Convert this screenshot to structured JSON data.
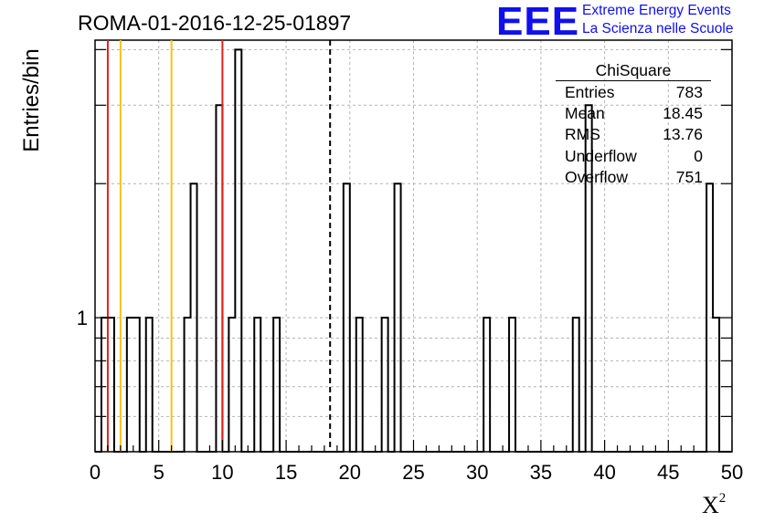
{
  "header": {
    "run_id": "ROMA-01-2016-12-25-01897",
    "logo_mark": "EEE",
    "logo_line1": "Extreme Energy Events",
    "logo_line2": "La Scienza nelle Scuole"
  },
  "stats": {
    "title": "ChiSquare",
    "rows": [
      {
        "label": "Entries",
        "value": "783"
      },
      {
        "label": "Mean",
        "value": "18.45"
      },
      {
        "label": "RMS",
        "value": "13.76"
      },
      {
        "label": "Underflow",
        "value": "0"
      },
      {
        "label": "Overflow",
        "value": "751"
      }
    ]
  },
  "colors": {
    "red_line": "#e0231c",
    "yellow_line": "#f5c21a",
    "grid": "#b4b4b4",
    "logo": "#1010ee"
  },
  "chart_data": {
    "type": "bar",
    "histogram": true,
    "xlabel": "Χ²",
    "ylabel": "Entries/bin",
    "xlim": [
      0,
      50
    ],
    "ylim": [
      0.5,
      4.2
    ],
    "y_scale": "log",
    "x_ticks": [
      "0",
      "5",
      "10",
      "15",
      "20",
      "25",
      "30",
      "35",
      "40",
      "45",
      "50"
    ],
    "y_tick_labels": [
      "1"
    ],
    "bin_width": 0.5,
    "grid": true,
    "bins": [
      {
        "x": 0.5,
        "count": 1
      },
      {
        "x": 1.0,
        "count": 1
      },
      {
        "x": 2.5,
        "count": 1
      },
      {
        "x": 3.0,
        "count": 1
      },
      {
        "x": 4.0,
        "count": 1
      },
      {
        "x": 7.0,
        "count": 1
      },
      {
        "x": 7.5,
        "count": 2
      },
      {
        "x": 9.5,
        "count": 3
      },
      {
        "x": 10.5,
        "count": 1
      },
      {
        "x": 11.0,
        "count": 4
      },
      {
        "x": 12.5,
        "count": 1
      },
      {
        "x": 14.0,
        "count": 1
      },
      {
        "x": 19.5,
        "count": 2
      },
      {
        "x": 20.5,
        "count": 1
      },
      {
        "x": 22.5,
        "count": 1
      },
      {
        "x": 23.5,
        "count": 2
      },
      {
        "x": 30.5,
        "count": 1
      },
      {
        "x": 32.5,
        "count": 1
      },
      {
        "x": 37.5,
        "count": 1
      },
      {
        "x": 38.5,
        "count": 3
      },
      {
        "x": 48.0,
        "count": 2
      },
      {
        "x": 48.5,
        "count": 1
      }
    ],
    "reference_lines": [
      {
        "x": 1,
        "color": "red"
      },
      {
        "x": 2,
        "color": "yellow"
      },
      {
        "x": 6,
        "color": "yellow"
      },
      {
        "x": 10,
        "color": "red"
      },
      {
        "x": 18.45,
        "color": "black",
        "style": "dashed"
      }
    ]
  }
}
